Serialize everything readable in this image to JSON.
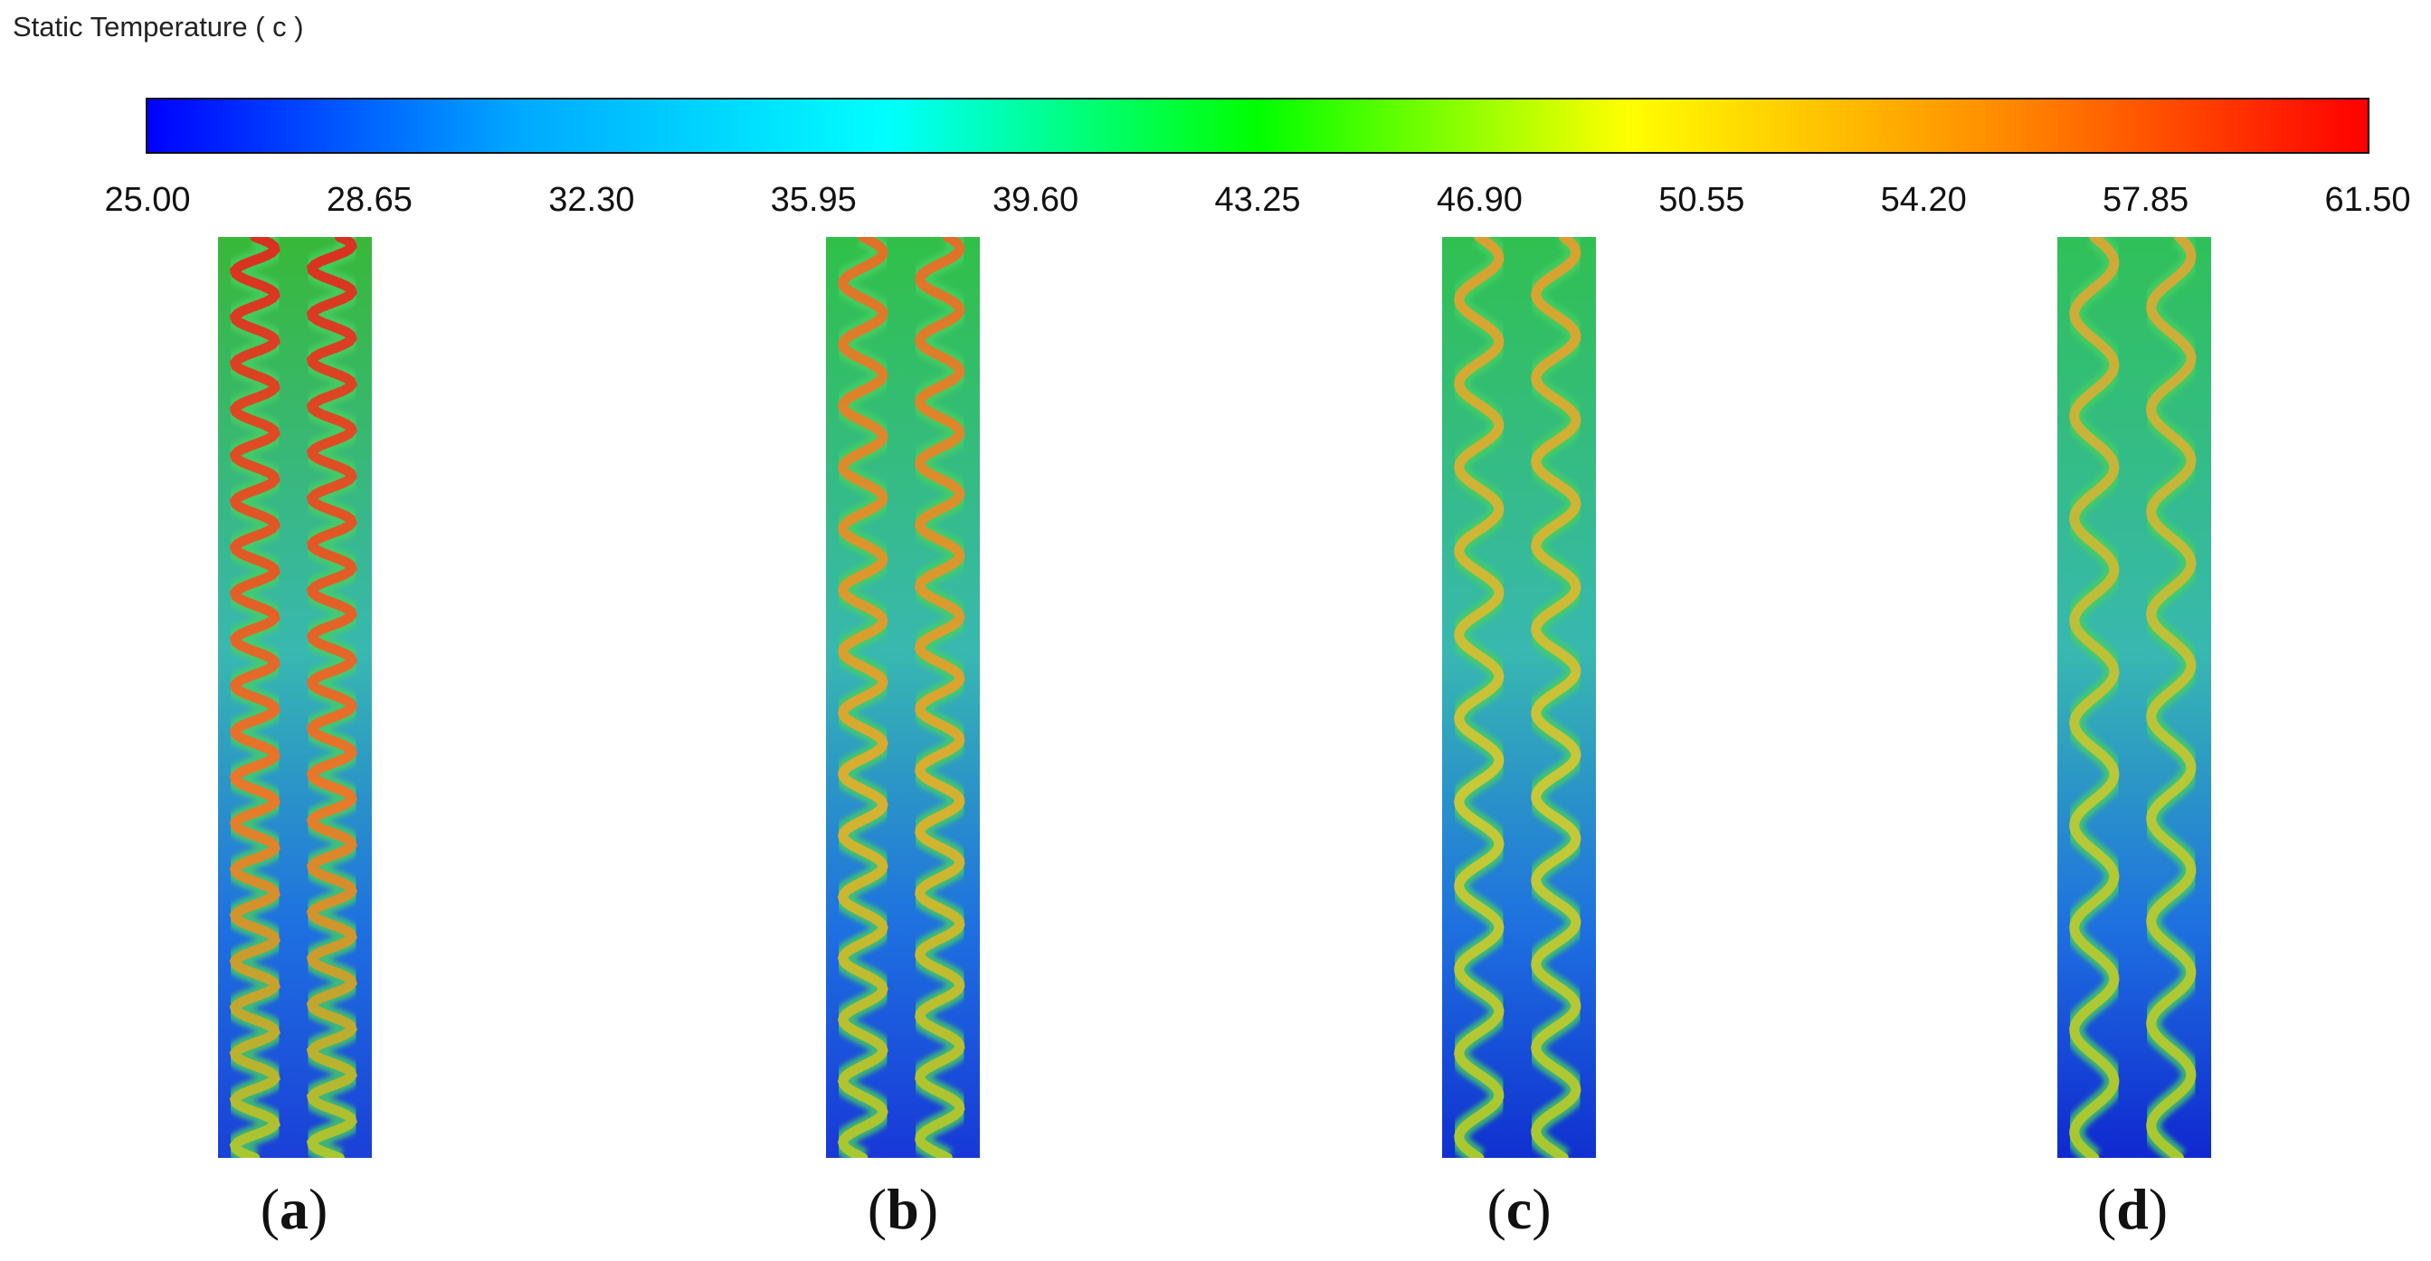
{
  "legend": {
    "title": "Static Temperature ( c )",
    "ticks": [
      "25.00",
      "28.65",
      "32.30",
      "35.95",
      "39.60",
      "43.25",
      "46.90",
      "50.55",
      "54.20",
      "57.85",
      "61.50"
    ],
    "colormap": [
      "#0000ff",
      "#00a8ff",
      "#00ffff",
      "#00ff00",
      "#ffff00",
      "#ff8c00",
      "#ff0000"
    ]
  },
  "panels": [
    {
      "label": "a",
      "waves": 20,
      "core_color": "#e8782a",
      "hot_color": "#d83020",
      "bg_top": "#38b838",
      "bg_bottom": "#1a40d8"
    },
    {
      "label": "b",
      "waves": 15,
      "core_color": "#d8b030",
      "hot_color": "#e07028",
      "bg_top": "#30c048",
      "bg_bottom": "#1838d8"
    },
    {
      "label": "c",
      "waves": 11,
      "core_color": "#c8c838",
      "hot_color": "#d8a030",
      "bg_top": "#30c050",
      "bg_bottom": "#1030d0"
    },
    {
      "label": "d",
      "waves": 9,
      "core_color": "#b8c838",
      "hot_color": "#d0a838",
      "bg_top": "#30c058",
      "bg_bottom": "#1028d0"
    }
  ]
}
